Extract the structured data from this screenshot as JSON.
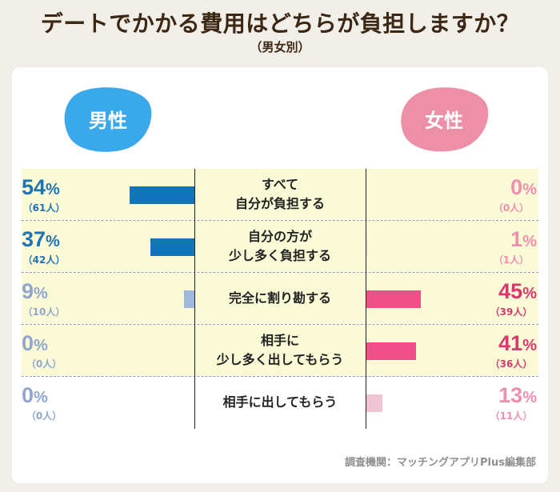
{
  "title": "デートでかかる費用はどちらが負担しますか？",
  "subtitle": "（男女別）",
  "source": "調査機関：マッチングアプリPlus編集部",
  "colors": {
    "male_blob": "#3aa9ec",
    "female_blob": "#ee8fa8",
    "male_bar": "#1175b9",
    "male_bar_light": "#9fb7df",
    "female_bar": "#ef4f86",
    "female_bar_light": "#eec4d4",
    "male_text": "#1e73b5",
    "male_text_light": "#8fa6cf",
    "female_text": "#d9386e",
    "female_text_light": "#ef8fb0"
  },
  "chart_data": {
    "type": "bar",
    "title": "デートでかかる費用はどちらが負担しますか？",
    "subtitle": "（男女別）",
    "groups": [
      "男性",
      "女性"
    ],
    "categories": [
      [
        "すべて",
        "自分が負担する"
      ],
      [
        "自分の方が",
        "少し多く負担する"
      ],
      [
        "完全に割り勘する"
      ],
      [
        "相手に",
        "少し多く出してもらう"
      ],
      [
        "相手に出してもらう"
      ]
    ],
    "series": [
      {
        "name": "男性",
        "values": [
          54,
          37,
          9,
          0,
          0
        ],
        "counts": [
          "（61人）",
          "（42人）",
          "（10人）",
          "（0人）",
          "（0人）"
        ]
      },
      {
        "name": "女性",
        "values": [
          0,
          1,
          45,
          41,
          13
        ],
        "counts": [
          "（0人）",
          "（1人）",
          "（39人）",
          "（36人）",
          "（11人）"
        ]
      }
    ],
    "unit": "%",
    "xlim": [
      0,
      100
    ]
  }
}
